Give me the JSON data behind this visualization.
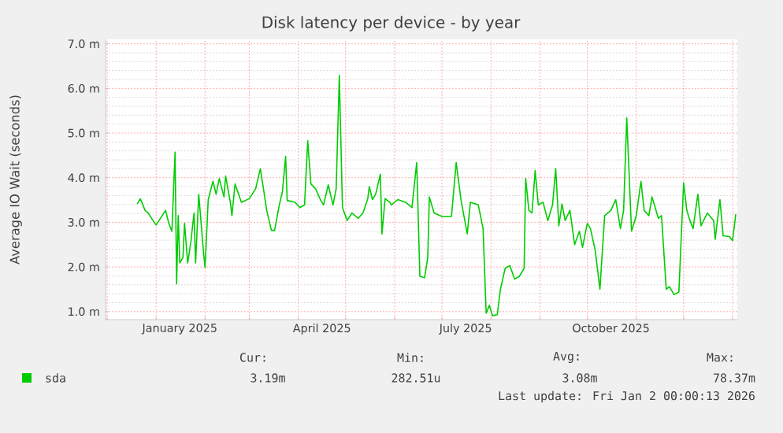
{
  "chart_data": {
    "type": "line",
    "title": "Disk latency per device - by year",
    "ylabel": "Average IO Wait (seconds)",
    "x": [
      "2024-12-20",
      "2024-12-22",
      "2024-12-25",
      "2024-12-27",
      "2024-12-30",
      "2025-01-01",
      "2025-01-07",
      "2025-01-09",
      "2025-01-11",
      "2025-01-13",
      "2025-01-14",
      "2025-01-15",
      "2025-01-16",
      "2025-01-18",
      "2025-01-19",
      "2025-01-21",
      "2025-01-23",
      "2025-01-25",
      "2025-01-26",
      "2025-01-28",
      "2025-01-31",
      "2025-02-01",
      "2025-02-03",
      "2025-02-06",
      "2025-02-08",
      "2025-02-10",
      "2025-02-13",
      "2025-02-14",
      "2025-02-17",
      "2025-02-18",
      "2025-02-20",
      "2025-02-24",
      "2025-03-01",
      "2025-03-05",
      "2025-03-08",
      "2025-03-10",
      "2025-03-12",
      "2025-03-15",
      "2025-03-17",
      "2025-03-20",
      "2025-03-22",
      "2025-03-24",
      "2025-03-25",
      "2025-03-30",
      "2025-04-02",
      "2025-04-05",
      "2025-04-07",
      "2025-04-09",
      "2025-04-12",
      "2025-04-15",
      "2025-04-17",
      "2025-04-20",
      "2025-04-23",
      "2025-04-25",
      "2025-04-27",
      "2025-04-29",
      "2025-05-02",
      "2025-05-05",
      "2025-05-09",
      "2025-05-12",
      "2025-05-15",
      "2025-05-16",
      "2025-05-18",
      "2025-05-20",
      "2025-05-23",
      "2025-05-24",
      "2025-05-26",
      "2025-05-29",
      "2025-05-30",
      "2025-06-03",
      "2025-06-08",
      "2025-06-12",
      "2025-06-15",
      "2025-06-17",
      "2025-06-20",
      "2025-06-22",
      "2025-06-23",
      "2025-06-26",
      "2025-07-01",
      "2025-07-07",
      "2025-07-10",
      "2025-07-13",
      "2025-07-17",
      "2025-07-19",
      "2025-07-24",
      "2025-07-27",
      "2025-07-29",
      "2025-07-31",
      "2025-08-02",
      "2025-08-05",
      "2025-08-07",
      "2025-08-10",
      "2025-08-13",
      "2025-08-16",
      "2025-08-19",
      "2025-08-22",
      "2025-08-23",
      "2025-08-25",
      "2025-08-27",
      "2025-08-29",
      "2025-08-31",
      "2025-09-03",
      "2025-09-06",
      "2025-09-09",
      "2025-09-11",
      "2025-09-13",
      "2025-09-15",
      "2025-09-17",
      "2025-09-20",
      "2025-09-23",
      "2025-09-26",
      "2025-09-28",
      "2025-10-01",
      "2025-10-03",
      "2025-10-06",
      "2025-10-09",
      "2025-10-12",
      "2025-10-16",
      "2025-10-19",
      "2025-10-22",
      "2025-10-24",
      "2025-10-26",
      "2025-10-29",
      "2025-11-01",
      "2025-11-04",
      "2025-11-06",
      "2025-11-09",
      "2025-11-11",
      "2025-11-15",
      "2025-11-17",
      "2025-11-20",
      "2025-11-22",
      "2025-11-25",
      "2025-11-28",
      "2025-12-01",
      "2025-12-03",
      "2025-12-05",
      "2025-12-07",
      "2025-12-10",
      "2025-12-12",
      "2025-12-16",
      "2025-12-20",
      "2025-12-21",
      "2025-12-24",
      "2025-12-26",
      "2025-12-30",
      "2026-01-01",
      "2026-01-03"
    ],
    "series": [
      {
        "name": "sda",
        "color": "#00cc00",
        "values": [
          3.41,
          3.53,
          3.27,
          3.21,
          3.04,
          2.94,
          3.27,
          2.98,
          2.8,
          4.57,
          1.62,
          3.15,
          2.09,
          2.21,
          2.98,
          2.09,
          2.56,
          3.21,
          2.09,
          3.63,
          2.33,
          1.99,
          3.51,
          3.92,
          3.63,
          3.98,
          3.57,
          4.04,
          3.45,
          3.15,
          3.86,
          3.45,
          3.53,
          3.75,
          4.2,
          3.75,
          3.27,
          2.82,
          2.82,
          3.39,
          3.69,
          4.48,
          3.49,
          3.45,
          3.33,
          3.39,
          4.83,
          3.86,
          3.75,
          3.51,
          3.39,
          3.84,
          3.39,
          3.75,
          6.29,
          3.33,
          3.04,
          3.21,
          3.09,
          3.21,
          3.53,
          3.8,
          3.51,
          3.63,
          4.08,
          2.74,
          3.53,
          3.45,
          3.39,
          3.51,
          3.45,
          3.33,
          4.34,
          1.79,
          1.76,
          2.21,
          3.57,
          3.21,
          3.13,
          3.13,
          4.34,
          3.51,
          2.74,
          3.45,
          3.39,
          2.86,
          0.96,
          1.14,
          0.91,
          0.93,
          1.5,
          1.97,
          2.03,
          1.73,
          1.79,
          1.97,
          3.98,
          3.27,
          3.21,
          4.16,
          3.39,
          3.45,
          3.04,
          3.39,
          4.2,
          2.92,
          3.41,
          3.04,
          3.27,
          2.5,
          2.8,
          2.44,
          2.98,
          2.86,
          2.38,
          1.5,
          3.15,
          3.27,
          3.51,
          2.86,
          3.27,
          5.34,
          2.8,
          3.15,
          3.92,
          3.27,
          3.15,
          3.57,
          3.09,
          3.15,
          1.5,
          1.56,
          1.38,
          1.44,
          3.89,
          3.27,
          3.04,
          2.86,
          3.63,
          2.92,
          3.21,
          3.04,
          2.62,
          3.51,
          2.7,
          2.68,
          2.59,
          3.18
        ]
      }
    ],
    "xlim": [
      "2024-11-30",
      "2026-01-04"
    ],
    "xticks": [
      {
        "value": "2024-12-01",
        "label": null
      },
      {
        "value": "2025-01-01",
        "label": null
      },
      {
        "value": "2025-02-01",
        "label": null
      },
      {
        "value": "2025-03-01",
        "label": null
      },
      {
        "value": "2025-04-01",
        "label": null
      },
      {
        "value": "2025-05-01",
        "label": null
      },
      {
        "value": "2025-06-01",
        "label": null
      },
      {
        "value": "2025-07-01",
        "label": null
      },
      {
        "value": "2025-08-01",
        "label": null
      },
      {
        "value": "2025-09-01",
        "label": null
      },
      {
        "value": "2025-10-01",
        "label": null
      },
      {
        "value": "2025-11-01",
        "label": null
      },
      {
        "value": "2025-12-01",
        "label": null
      },
      {
        "value": "2026-01-01",
        "label": null
      },
      {
        "value": "2025-01-16",
        "label": "January 2025"
      },
      {
        "value": "2025-04-16",
        "label": "April 2025"
      },
      {
        "value": "2025-07-16",
        "label": "July 2025"
      },
      {
        "value": "2025-10-16",
        "label": "October 2025"
      }
    ],
    "ylim": [
      0.82,
      7.1
    ],
    "yticks": [
      {
        "value": 1,
        "label": "1.0 m"
      },
      {
        "value": 2,
        "label": "2.0 m"
      },
      {
        "value": 3,
        "label": "3.0 m"
      },
      {
        "value": 4,
        "label": "4.0 m"
      },
      {
        "value": 5,
        "label": "5.0 m"
      },
      {
        "value": 6,
        "label": "6.0 m"
      },
      {
        "value": 7,
        "label": "7.0 m"
      }
    ],
    "grid": true,
    "legend": "bottom left",
    "marker": "none",
    "line_style": "solid",
    "annotations": [
      "Cur:",
      "Min:",
      "Avg:",
      "Max:",
      "3.19m",
      "282.51u",
      "3.08m",
      "78.37m",
      "Last update: Fri Jan  2 00:00:13 2026"
    ]
  }
}
